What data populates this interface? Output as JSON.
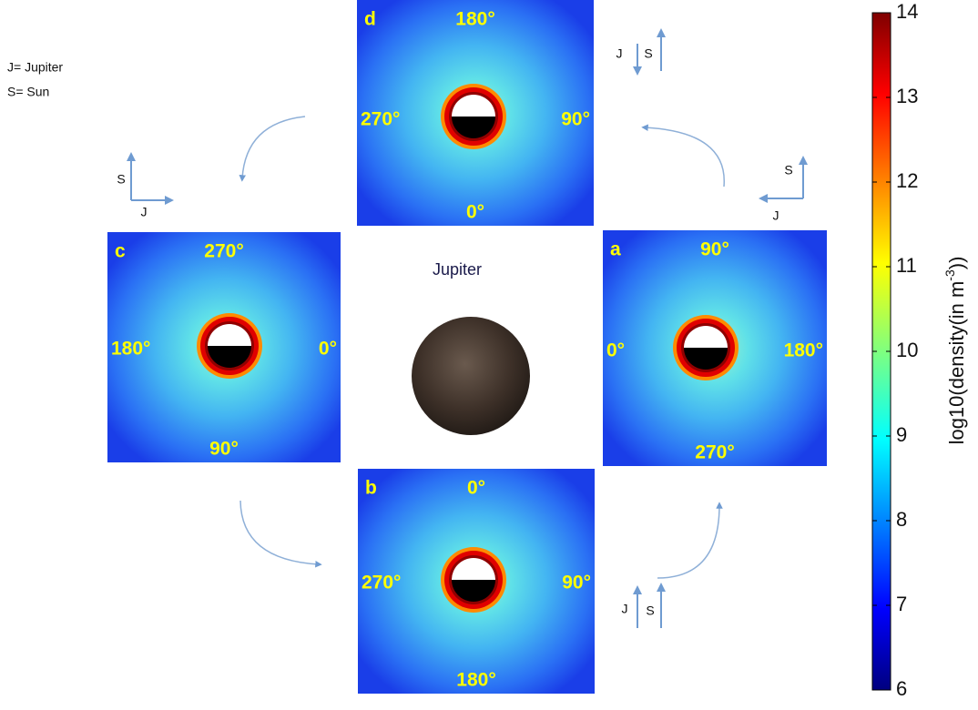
{
  "legend": [
    "J= Jupiter",
    "S= Sun"
  ],
  "center_label": "Jupiter",
  "panels": [
    {
      "letter": "d",
      "top": "180°",
      "left": "270°",
      "right": "90°",
      "bottom": "0°",
      "orientation": [
        "J",
        "S"
      ]
    },
    {
      "letter": "c",
      "top": "270°",
      "left": "180°",
      "right": "0°",
      "bottom": "90°",
      "orientation": [
        "S",
        "J"
      ]
    },
    {
      "letter": "a",
      "top": "90°",
      "left": "0°",
      "right": "180°",
      "bottom": "270°",
      "orientation": [
        "S",
        "J"
      ]
    },
    {
      "letter": "b",
      "top": "0°",
      "left": "270°",
      "right": "90°",
      "bottom": "180°",
      "orientation": [
        "J",
        "S"
      ]
    }
  ],
  "colorbar": {
    "label": "log10(density(in m",
    "label_sup": "-3",
    "label_end": "))",
    "lim": [
      6,
      14
    ],
    "ticks": [
      6,
      7,
      8,
      9,
      10,
      11,
      12,
      13,
      14
    ]
  }
}
